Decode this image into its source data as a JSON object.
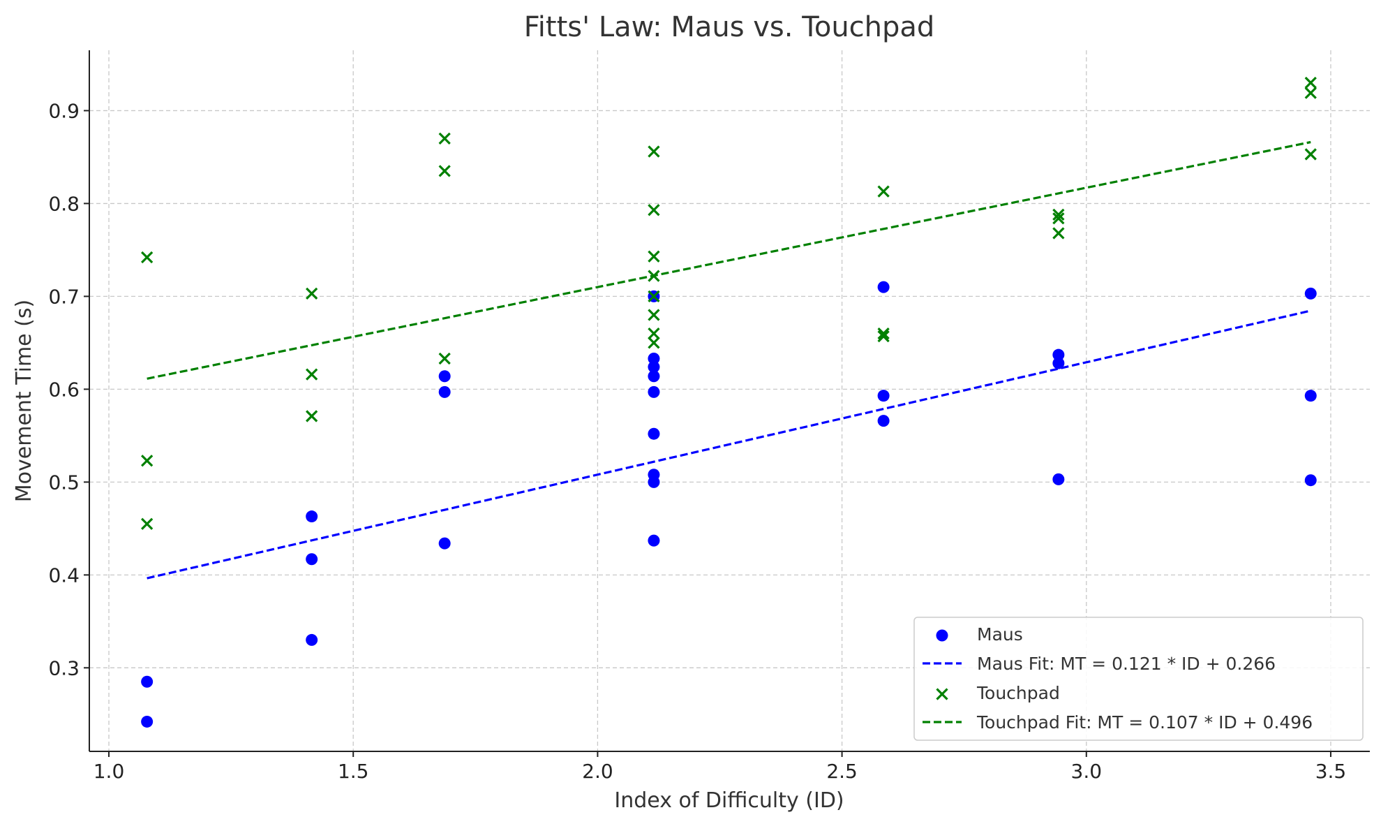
{
  "chart_data": {
    "type": "scatter",
    "title": "Fitts' Law: Maus vs. Touchpad",
    "xlabel": "Index of Difficulty (ID)",
    "ylabel": "Movement Time (s)",
    "xlim": [
      0.96,
      3.58
    ],
    "ylim": [
      0.21,
      0.965
    ],
    "xticks": [
      1.0,
      1.5,
      2.0,
      2.5,
      3.0,
      3.5
    ],
    "xtick_labels": [
      "1.0",
      "1.5",
      "2.0",
      "2.5",
      "3.0",
      "3.5"
    ],
    "yticks": [
      0.3,
      0.4,
      0.5,
      0.6,
      0.7,
      0.8,
      0.9
    ],
    "ytick_labels": [
      "0.3",
      "0.4",
      "0.5",
      "0.6",
      "0.7",
      "0.8",
      "0.9"
    ],
    "grid": true,
    "legend_position": "bottom-right",
    "series": [
      {
        "name": "Maus",
        "kind": "scatter",
        "marker": "circle",
        "color": "#0000ff",
        "points": [
          [
            1.078,
            0.285
          ],
          [
            1.078,
            0.242
          ],
          [
            1.415,
            0.463
          ],
          [
            1.415,
            0.417
          ],
          [
            1.415,
            0.33
          ],
          [
            1.687,
            0.614
          ],
          [
            1.687,
            0.597
          ],
          [
            1.687,
            0.434
          ],
          [
            2.115,
            0.7
          ],
          [
            2.115,
            0.633
          ],
          [
            2.115,
            0.624
          ],
          [
            2.115,
            0.614
          ],
          [
            2.115,
            0.597
          ],
          [
            2.115,
            0.552
          ],
          [
            2.115,
            0.508
          ],
          [
            2.115,
            0.5
          ],
          [
            2.115,
            0.437
          ],
          [
            2.585,
            0.71
          ],
          [
            2.585,
            0.593
          ],
          [
            2.585,
            0.566
          ],
          [
            2.943,
            0.637
          ],
          [
            2.943,
            0.628
          ],
          [
            2.943,
            0.503
          ],
          [
            3.459,
            0.703
          ],
          [
            3.459,
            0.593
          ],
          [
            3.459,
            0.502
          ]
        ]
      },
      {
        "name": "Maus Fit: MT = 0.121 * ID + 0.266",
        "kind": "line",
        "dash": true,
        "color": "#0000ff",
        "slope": 0.121,
        "intercept": 0.266,
        "x_range": [
          1.078,
          3.459
        ]
      },
      {
        "name": "Touchpad",
        "kind": "scatter",
        "marker": "x",
        "color": "#008000",
        "points": [
          [
            1.078,
            0.742
          ],
          [
            1.078,
            0.523
          ],
          [
            1.078,
            0.455
          ],
          [
            1.415,
            0.703
          ],
          [
            1.415,
            0.616
          ],
          [
            1.415,
            0.571
          ],
          [
            1.687,
            0.87
          ],
          [
            1.687,
            0.835
          ],
          [
            1.687,
            0.633
          ],
          [
            2.115,
            0.856
          ],
          [
            2.115,
            0.793
          ],
          [
            2.115,
            0.743
          ],
          [
            2.115,
            0.722
          ],
          [
            2.115,
            0.7
          ],
          [
            2.115,
            0.68
          ],
          [
            2.115,
            0.66
          ],
          [
            2.115,
            0.65
          ],
          [
            2.585,
            0.813
          ],
          [
            2.585,
            0.66
          ],
          [
            2.585,
            0.657
          ],
          [
            2.943,
            0.788
          ],
          [
            2.943,
            0.784
          ],
          [
            2.943,
            0.768
          ],
          [
            3.459,
            0.93
          ],
          [
            3.459,
            0.919
          ],
          [
            3.459,
            0.853
          ]
        ]
      },
      {
        "name": "Touchpad Fit: MT = 0.107 * ID + 0.496",
        "kind": "line",
        "dash": true,
        "color": "#008000",
        "slope": 0.107,
        "intercept": 0.496,
        "x_range": [
          1.078,
          3.459
        ]
      }
    ]
  }
}
